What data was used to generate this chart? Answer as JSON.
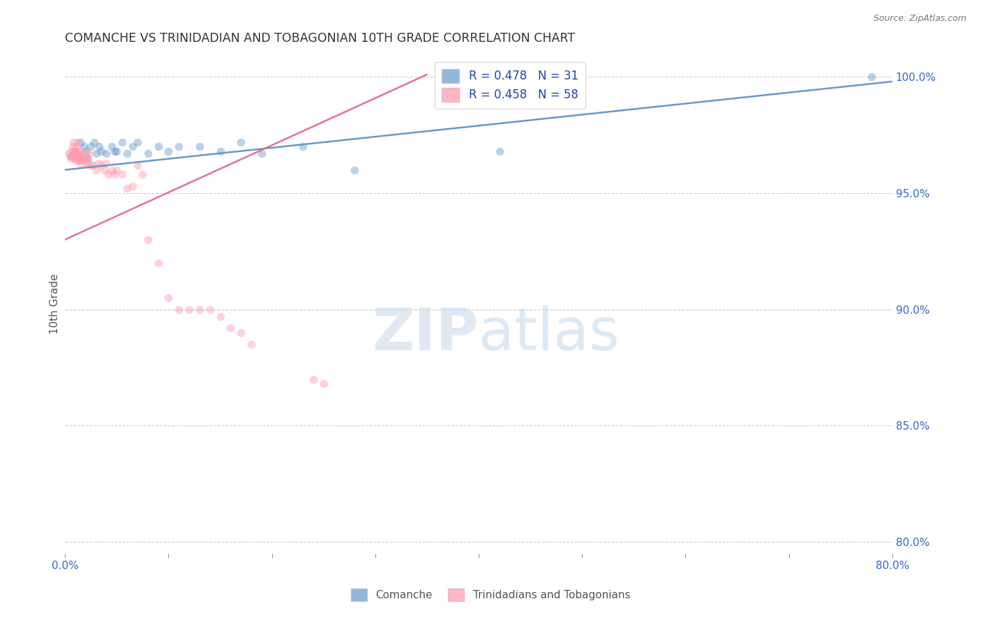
{
  "title": "COMANCHE VS TRINIDADIAN AND TOBAGONIAN 10TH GRADE CORRELATION CHART",
  "source": "Source: ZipAtlas.com",
  "ylabel": "10th Grade",
  "watermark_zip": "ZIP",
  "watermark_atlas": "atlas",
  "xmin": 0.0,
  "xmax": 0.8,
  "ymin": 0.795,
  "ymax": 1.01,
  "x_ticks": [
    0.0,
    0.1,
    0.2,
    0.3,
    0.4,
    0.5,
    0.6,
    0.7,
    0.8
  ],
  "x_tick_labels": [
    "0.0%",
    "",
    "",
    "",
    "",
    "",
    "",
    "",
    "80.0%"
  ],
  "y_tick_right": [
    0.8,
    0.85,
    0.9,
    0.95,
    1.0
  ],
  "y_tick_right_labels": [
    "80.0%",
    "85.0%",
    "90.0%",
    "95.0%",
    "100.0%"
  ],
  "legend_entry_blue": "R = 0.478   N = 31",
  "legend_entry_pink": "R = 0.458   N = 58",
  "legend_color_blue": "#6699cc",
  "legend_color_pink": "#ff99aa",
  "legend_labels_bottom": [
    "Comanche",
    "Trinidadians and Tobagonians"
  ],
  "blue_scatter_x": [
    0.005,
    0.01,
    0.015,
    0.018,
    0.02,
    0.022,
    0.025,
    0.028,
    0.03,
    0.033,
    0.035,
    0.04,
    0.045,
    0.048,
    0.05,
    0.055,
    0.06,
    0.065,
    0.07,
    0.08,
    0.09,
    0.1,
    0.11,
    0.13,
    0.15,
    0.17,
    0.19,
    0.23,
    0.28,
    0.42,
    0.78
  ],
  "blue_scatter_y": [
    0.966,
    0.967,
    0.972,
    0.97,
    0.968,
    0.965,
    0.97,
    0.972,
    0.967,
    0.97,
    0.968,
    0.967,
    0.97,
    0.968,
    0.968,
    0.972,
    0.967,
    0.97,
    0.972,
    0.967,
    0.97,
    0.968,
    0.97,
    0.97,
    0.968,
    0.972,
    0.967,
    0.97,
    0.96,
    0.968,
    1.0
  ],
  "pink_scatter_x": [
    0.003,
    0.005,
    0.006,
    0.007,
    0.007,
    0.008,
    0.008,
    0.009,
    0.009,
    0.01,
    0.01,
    0.011,
    0.011,
    0.012,
    0.012,
    0.013,
    0.013,
    0.014,
    0.014,
    0.015,
    0.015,
    0.016,
    0.017,
    0.018,
    0.019,
    0.02,
    0.021,
    0.022,
    0.023,
    0.025,
    0.027,
    0.03,
    0.032,
    0.035,
    0.038,
    0.04,
    0.042,
    0.045,
    0.048,
    0.05,
    0.055,
    0.06,
    0.065,
    0.07,
    0.075,
    0.08,
    0.09,
    0.1,
    0.11,
    0.12,
    0.13,
    0.14,
    0.15,
    0.16,
    0.17,
    0.18,
    0.24,
    0.25
  ],
  "pink_scatter_y": [
    0.967,
    0.965,
    0.968,
    0.97,
    0.966,
    0.972,
    0.967,
    0.968,
    0.965,
    0.968,
    0.964,
    0.97,
    0.967,
    0.972,
    0.966,
    0.968,
    0.964,
    0.965,
    0.968,
    0.966,
    0.963,
    0.964,
    0.966,
    0.965,
    0.967,
    0.963,
    0.965,
    0.963,
    0.967,
    0.962,
    0.962,
    0.96,
    0.963,
    0.962,
    0.96,
    0.963,
    0.958,
    0.96,
    0.958,
    0.96,
    0.958,
    0.952,
    0.953,
    0.962,
    0.958,
    0.93,
    0.92,
    0.905,
    0.9,
    0.9,
    0.9,
    0.9,
    0.897,
    0.892,
    0.89,
    0.885,
    0.87,
    0.868
  ],
  "blue_line_x": [
    0.0,
    0.8
  ],
  "blue_line_y": [
    0.96,
    0.998
  ],
  "pink_line_x": [
    0.0,
    0.35
  ],
  "pink_line_y": [
    0.93,
    1.001
  ],
  "dot_size": 70,
  "dot_alpha": 0.45,
  "line_width": 1.8,
  "background_color": "#ffffff",
  "grid_color": "#cccccc",
  "title_color": "#333333",
  "axis_color": "#3366cc"
}
